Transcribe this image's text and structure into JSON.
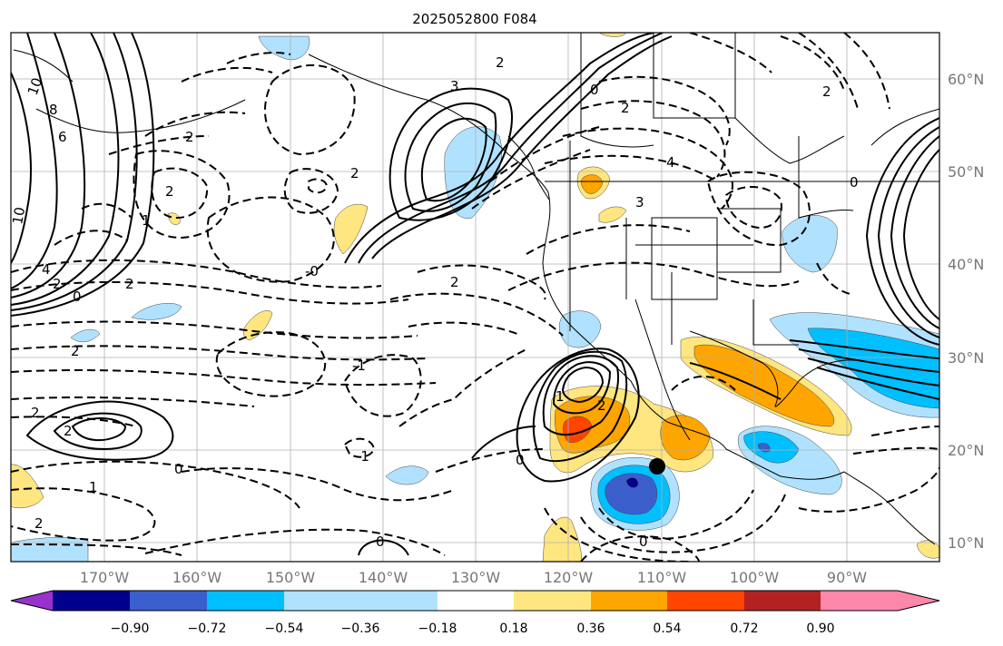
{
  "title": "2025052800 F084",
  "map": {
    "lon_labels": [
      "170°W",
      "160°W",
      "150°W",
      "140°W",
      "130°W",
      "120°W",
      "110°W",
      "100°W",
      "90°W"
    ],
    "lat_labels": [
      "60°N",
      "50°N",
      "40°N",
      "30°N",
      "20°N",
      "10°N"
    ]
  },
  "colorbar": {
    "ticks": [
      "−0.90",
      "−0.72",
      "−0.54",
      "−0.36",
      "−0.18",
      "0.18",
      "0.36",
      "0.54",
      "0.72",
      "0.90"
    ],
    "colors": [
      "#9932cc",
      "#00008b",
      "#3a5fcd",
      "#00bfff",
      "#b0e2ff",
      "#ffffff",
      "#ffe680",
      "#ffa500",
      "#ff4500",
      "#b22222",
      "#ff88aa"
    ]
  },
  "contour_labels": [
    "10",
    "8",
    "6",
    "10",
    "4",
    "2",
    "0",
    "2",
    "1",
    "2",
    "2",
    "2",
    "3",
    "2",
    "0",
    "2",
    "2",
    "0",
    "4",
    "3",
    "2",
    "2",
    "1",
    "-1",
    "0",
    "0",
    "-1",
    "-0",
    "1",
    "2",
    "2",
    "2",
    "2",
    "0",
    "0"
  ],
  "marker": {
    "label": "",
    "color": "#000000"
  }
}
